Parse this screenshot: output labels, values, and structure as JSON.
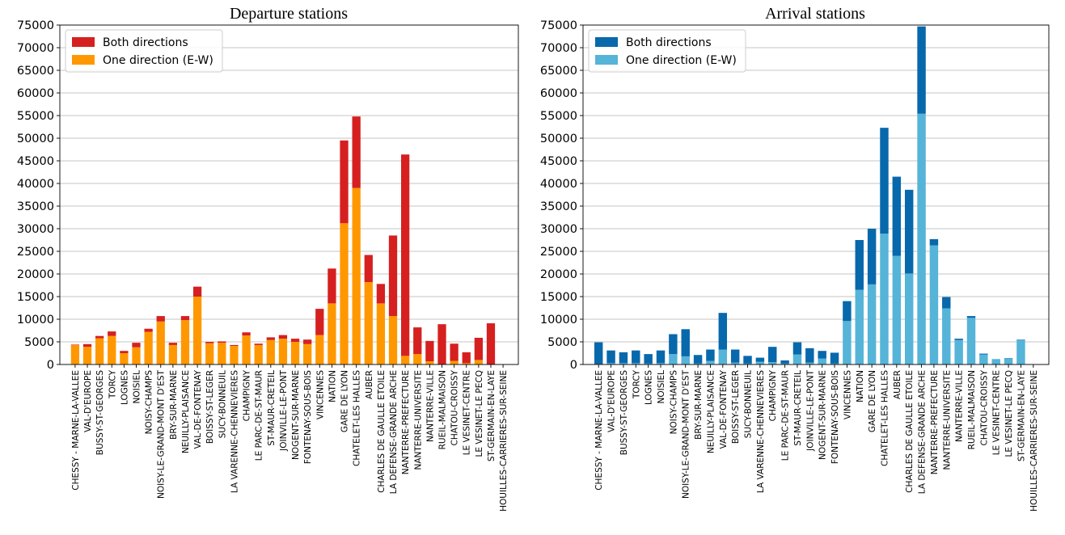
{
  "chart_data": [
    {
      "type": "bar",
      "stacked": true,
      "title": "Departure stations",
      "xlabel": "",
      "ylabel": "",
      "ylim": [
        0,
        75000
      ],
      "yticks": [
        0,
        5000,
        10000,
        15000,
        20000,
        25000,
        30000,
        35000,
        40000,
        45000,
        50000,
        55000,
        60000,
        65000,
        70000,
        75000
      ],
      "grid": "horizontal",
      "legend_position": "top-left",
      "categories": [
        "CHESSY - MARNE-LA-VALLEE",
        "VAL-D'EUROPE",
        "BUSSY-ST-GEORGES",
        "TORCY",
        "LOGNES",
        "NOISIEL",
        "NOISY-CHAMPS",
        "NOISY-LE-GRAND-MONT D'EST",
        "BRY-SUR-MARNE",
        "NEUILLY-PLAISANCE",
        "VAL-DE-FONTENAY",
        "BOISSY-ST-LEGER",
        "SUCY-BONNEUIL",
        "LA VARENNE-CHENNEVIERES",
        "CHAMPIGNY",
        "LE PARC-DE-ST-MAUR",
        "ST-MAUR-CRETEIL",
        "JOINVILLE-LE-PONT",
        "NOGENT-SUR-MARNE",
        "FONTENAY-SOUS-BOIS",
        "VINCENNES",
        "NATION",
        "GARE DE LYON",
        "CHATELET-LES HALLES",
        "AUBER",
        "CHARLES DE GAULLE ETOILE",
        "LA DEFENSE-GRANDE ARCHE",
        "NANTERRE-PREFECTURE",
        "NANTERRE-UNIVERSITE",
        "NANTERRE-VILLE",
        "RUEIL-MALMAISON",
        "CHATOU-CROISSY",
        "LE VESINET-CENTRE",
        "LE VESINET-LE PECQ",
        "ST-GERMAIN-EN-LAYE",
        "HOUILLES-CARRIERES-SUR-SEINE"
      ],
      "series": [
        {
          "name": "One direction (E-W)",
          "color": "#ff9800",
          "values": [
            4300,
            3900,
            5800,
            6300,
            2500,
            3800,
            7200,
            9500,
            4300,
            9800,
            15000,
            4700,
            4800,
            4100,
            6400,
            4300,
            5400,
            5700,
            5000,
            4500,
            6500,
            13500,
            31200,
            39000,
            18200,
            13500,
            10700,
            1900,
            2300,
            700,
            0,
            800,
            300,
            1000,
            0,
            0
          ]
        },
        {
          "name": "Both directions",
          "color": "#d62020",
          "values": [
            100,
            600,
            500,
            1000,
            500,
            1000,
            700,
            1200,
            500,
            900,
            2200,
            300,
            300,
            200,
            700,
            300,
            600,
            800,
            700,
            1000,
            5800,
            7700,
            18300,
            15800,
            6000,
            4300,
            17800,
            44500,
            5900,
            4500,
            8900,
            3800,
            2400,
            4900,
            9100,
            0
          ]
        }
      ]
    },
    {
      "type": "bar",
      "stacked": true,
      "title": "Arrival stations",
      "xlabel": "",
      "ylabel": "",
      "ylim": [
        0,
        75000
      ],
      "yticks": [
        0,
        5000,
        10000,
        15000,
        20000,
        25000,
        30000,
        35000,
        40000,
        45000,
        50000,
        55000,
        60000,
        65000,
        70000,
        75000
      ],
      "grid": "horizontal",
      "legend_position": "top-left",
      "categories": [
        "CHESSY - MARNE-LA-VALLEE",
        "VAL-D'EUROPE",
        "BUSSY-ST-GEORGES",
        "TORCY",
        "LOGNES",
        "NOISIEL",
        "NOISY-CHAMPS",
        "NOISY-LE-GRAND-MONT D'EST",
        "BRY-SUR-MARNE",
        "NEUILLY-PLAISANCE",
        "VAL-DE-FONTENAY",
        "BOISSY-ST-LEGER",
        "SUCY-BONNEUIL",
        "LA VARENNE-CHENNEVIERES",
        "CHAMPIGNY",
        "LE PARC-DE-ST-MAUR",
        "ST-MAUR-CRETEIL",
        "JOINVILLE-LE-PONT",
        "NOGENT-SUR-MARNE",
        "FONTENAY-SOUS-BOIS",
        "VINCENNES",
        "NATION",
        "GARE DE LYON",
        "CHATELET-LES HALLES",
        "AUBER",
        "CHARLES DE GAULLE ETOILE",
        "LA DEFENSE-GRANDE ARCHE",
        "NANTERRE-PREFECTURE",
        "NANTERRE-UNIVERSITE",
        "NANTERRE-VILLE",
        "RUEIL-MALMAISON",
        "CHATOU-CROISSY",
        "LE VESINET-CENTRE",
        "LE VESINET-LE PECQ",
        "ST-GERMAIN-EN-LAYE",
        "HOUILLES-CARRIERES-SUR-SEINE"
      ],
      "series": [
        {
          "name": "One direction (E-W)",
          "color": "#55b4d8",
          "values": [
            100,
            300,
            300,
            300,
            200,
            300,
            2300,
            1800,
            200,
            800,
            3300,
            400,
            200,
            600,
            500,
            200,
            2200,
            400,
            1300,
            200,
            9600,
            16500,
            17700,
            28900,
            24000,
            20100,
            55400,
            26300,
            12400,
            5400,
            10300,
            2200,
            1200,
            1300,
            5400,
            0
          ]
        },
        {
          "name": "Both directions",
          "color": "#0868ac",
          "values": [
            4800,
            2800,
            2400,
            2800,
            2100,
            2800,
            4400,
            6000,
            1900,
            2500,
            8100,
            2900,
            1700,
            900,
            3400,
            700,
            2700,
            3200,
            1700,
            2400,
            4400,
            11000,
            12300,
            23400,
            17500,
            18500,
            19300,
            1400,
            2500,
            300,
            400,
            200,
            0,
            100,
            100,
            0
          ]
        }
      ]
    }
  ]
}
